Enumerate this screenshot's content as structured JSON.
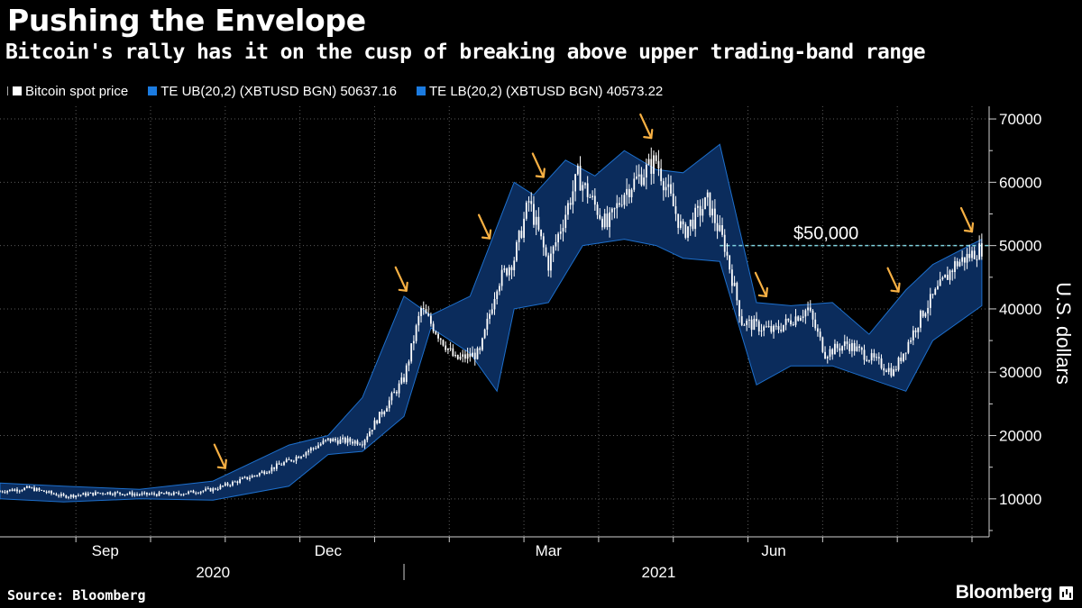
{
  "headline": "Pushing the Envelope",
  "subheadline": "Bitcoin's rally has it on the cusp of breaking above upper trading-band range",
  "legend": [
    {
      "label": "Bitcoin spot price",
      "color": "#ffffff"
    },
    {
      "label": "TE UB(20,2) (XBTUSD BGN) 50637.16",
      "color": "#1b7be0"
    },
    {
      "label": "TE LB(20,2) (XBTUSD BGN) 40573.22",
      "color": "#1b7be0"
    }
  ],
  "source": "Source: Bloomberg",
  "brand": "Bloomberg",
  "chart_data": {
    "type": "area",
    "title": "Pushing the Envelope",
    "subtitle": "Bitcoin's rally has it on the cusp of breaking above upper trading-band range",
    "xlabel": "",
    "ylabel": "U.S. dollars",
    "ylim": [
      4000,
      72000
    ],
    "yticks": [
      10000,
      20000,
      30000,
      40000,
      50000,
      60000,
      70000
    ],
    "ytick_labels": [
      "10000",
      "20000",
      "30000",
      "40000",
      "50000",
      "60000",
      "70000"
    ],
    "xlim": [
      "2020-07-20",
      "2021-08-28"
    ],
    "xticks": [
      {
        "date": "2020-09-01",
        "label": "Sep"
      },
      {
        "date": "2020-12-01",
        "label": "Dec"
      },
      {
        "date": "2021-03-01",
        "label": "Mar"
      },
      {
        "date": "2021-06-01",
        "label": "Jun"
      }
    ],
    "year_labels": [
      {
        "date": "2020-10-15",
        "label": "2020"
      },
      {
        "date": "2021-04-15",
        "label": "2021"
      }
    ],
    "grid": true,
    "legend_position": "top-left",
    "reference_line": {
      "value": 50000,
      "label": "$50,000",
      "color": "#7fd3e0"
    },
    "series": [
      {
        "name": "Bitcoin spot price",
        "color": "#ffffff",
        "x": [
          "2020-07-20",
          "2020-08-01",
          "2020-08-15",
          "2020-09-01",
          "2020-09-15",
          "2020-10-01",
          "2020-10-15",
          "2020-11-01",
          "2020-11-15",
          "2020-12-01",
          "2020-12-15",
          "2021-01-01",
          "2021-01-08",
          "2021-01-15",
          "2021-01-22",
          "2021-02-01",
          "2021-02-08",
          "2021-02-15",
          "2021-02-21",
          "2021-03-01",
          "2021-03-13",
          "2021-03-25",
          "2021-04-01",
          "2021-04-14",
          "2021-04-25",
          "2021-05-05",
          "2021-05-12",
          "2021-05-19",
          "2021-06-01",
          "2021-06-15",
          "2021-06-22",
          "2021-07-01",
          "2021-07-20",
          "2021-08-01",
          "2021-08-14",
          "2021-08-25"
        ],
        "values": [
          11200,
          11700,
          10400,
          11000,
          10700,
          10800,
          11500,
          13700,
          16000,
          19300,
          19000,
          29000,
          40000,
          36000,
          32000,
          33000,
          44000,
          48000,
          57000,
          47000,
          61000,
          53000,
          58500,
          63500,
          52000,
          57000,
          50000,
          38000,
          36500,
          40000,
          33000,
          34500,
          30000,
          39500,
          47000,
          49600
        ]
      },
      {
        "name": "TE UB(20,2) (XBTUSD BGN) 50637.16",
        "color": "#1b7be0",
        "x": [
          "2020-07-20",
          "2020-08-15",
          "2020-09-15",
          "2020-10-15",
          "2020-11-15",
          "2020-12-01",
          "2020-12-15",
          "2021-01-01",
          "2021-01-12",
          "2021-01-28",
          "2021-02-15",
          "2021-02-23",
          "2021-03-08",
          "2021-03-20",
          "2021-04-01",
          "2021-04-14",
          "2021-04-25",
          "2021-05-10",
          "2021-05-25",
          "2021-06-08",
          "2021-06-25",
          "2021-07-10",
          "2021-07-25",
          "2021-08-05",
          "2021-08-25"
        ],
        "values": [
          12500,
          12000,
          11500,
          12800,
          18500,
          20000,
          26000,
          42000,
          39000,
          42000,
          60000,
          58000,
          63500,
          61000,
          65000,
          62000,
          61500,
          66000,
          41000,
          40500,
          41000,
          36000,
          43000,
          47000,
          51000
        ]
      },
      {
        "name": "TE LB(20,2) (XBTUSD BGN) 40573.22",
        "color": "#1b7be0",
        "x": [
          "2020-07-20",
          "2020-08-15",
          "2020-09-15",
          "2020-10-15",
          "2020-11-15",
          "2020-12-01",
          "2020-12-15",
          "2021-01-01",
          "2021-01-12",
          "2021-01-28",
          "2021-02-08",
          "2021-02-15",
          "2021-03-01",
          "2021-03-15",
          "2021-04-01",
          "2021-04-14",
          "2021-04-25",
          "2021-05-10",
          "2021-05-25",
          "2021-06-08",
          "2021-06-25",
          "2021-07-10",
          "2021-07-25",
          "2021-08-05",
          "2021-08-25"
        ],
        "values": [
          10000,
          9500,
          10000,
          9800,
          12000,
          17000,
          17500,
          23000,
          37000,
          33000,
          27000,
          40000,
          41000,
          50000,
          51000,
          50000,
          48000,
          47500,
          28000,
          31000,
          31000,
          29000,
          27000,
          35000,
          40500
        ]
      }
    ],
    "annotations": {
      "arrow_dates": [
        "2020-10-20",
        "2021-01-02",
        "2021-02-05",
        "2021-02-27",
        "2021-04-12",
        "2021-05-29",
        "2021-07-22",
        "2021-08-21"
      ]
    }
  }
}
